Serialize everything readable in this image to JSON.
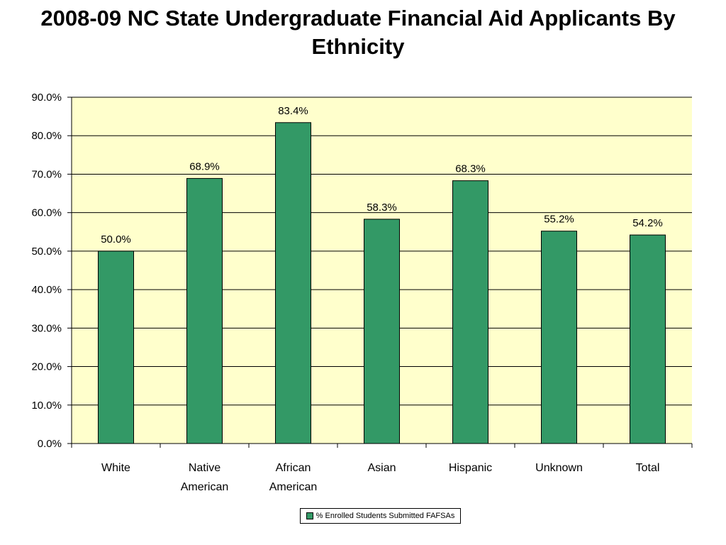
{
  "chart_data": {
    "type": "bar",
    "title": "2008-09 NC State Undergraduate Financial Aid Applicants By Ethnicity",
    "categories": [
      [
        "White"
      ],
      [
        "Native",
        "American"
      ],
      [
        "African",
        "American"
      ],
      [
        "Asian"
      ],
      [
        "Hispanic"
      ],
      [
        "Unknown"
      ],
      [
        "Total"
      ]
    ],
    "series": [
      {
        "name": "% Enrolled Students Submitted FAFSAs",
        "values": [
          50.0,
          68.9,
          83.4,
          58.3,
          68.3,
          55.2,
          54.2
        ],
        "labels": [
          "50.0%",
          "68.9%",
          "83.4%",
          "58.3%",
          "68.3%",
          "55.2%",
          "54.2%"
        ]
      }
    ],
    "yticks": [
      "0.0%",
      "10.0%",
      "20.0%",
      "30.0%",
      "40.0%",
      "50.0%",
      "60.0%",
      "70.0%",
      "80.0%",
      "90.0%"
    ],
    "ylim": [
      0,
      90
    ],
    "grid": true,
    "legend_position": "bottom",
    "colors": {
      "bar": "#339966",
      "plot_background": "#ffffcc",
      "gridline": "#000000"
    }
  }
}
